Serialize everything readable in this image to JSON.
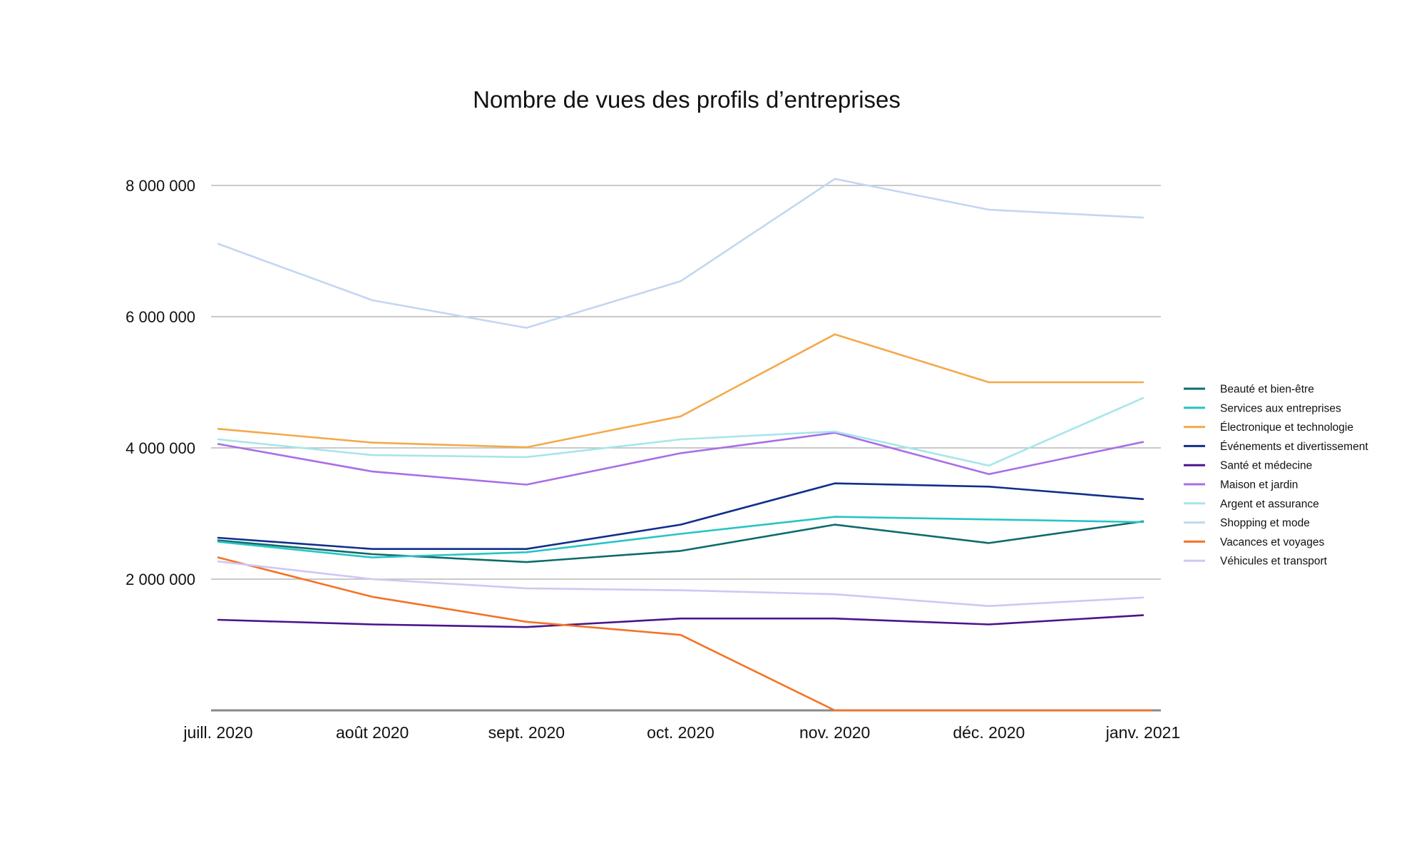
{
  "chart_data": {
    "type": "line",
    "title": "Nombre de vues des profils d’entreprises",
    "xlabel": "",
    "ylabel": "",
    "categories": [
      "juill. 2020",
      "août 2020",
      "sept. 2020",
      "oct. 2020",
      "nov. 2020",
      "déc. 2020",
      "janv. 2021"
    ],
    "yticks": [
      2000000,
      4000000,
      6000000,
      8000000
    ],
    "ytick_labels": [
      "2 000 000",
      "4 000 000",
      "6 000 000",
      "8 000 000"
    ],
    "ylim": [
      0,
      8000000
    ],
    "grid": true,
    "legend_position": "right",
    "series": [
      {
        "name": "Beauté et bien-être",
        "color": "#0f6b6b",
        "values": [
          2590000,
          2380000,
          2260000,
          2430000,
          2830000,
          2550000,
          2880000
        ]
      },
      {
        "name": "Services aux entreprises",
        "color": "#27c4c4",
        "values": [
          2570000,
          2330000,
          2410000,
          2690000,
          2950000,
          2910000,
          2870000
        ]
      },
      {
        "name": "Électronique et technologie",
        "color": "#f4a94a",
        "values": [
          4290000,
          4080000,
          4010000,
          4480000,
          5730000,
          5000000,
          5000000
        ]
      },
      {
        "name": "Événements et divertissement",
        "color": "#112e8c",
        "values": [
          2630000,
          2460000,
          2460000,
          2830000,
          3460000,
          3410000,
          3220000
        ]
      },
      {
        "name": "Santé et médecine",
        "color": "#4a148c",
        "values": [
          1380000,
          1310000,
          1270000,
          1400000,
          1400000,
          1310000,
          1450000
        ]
      },
      {
        "name": "Maison et jardin",
        "color": "#a86ee8",
        "values": [
          4060000,
          3640000,
          3440000,
          3920000,
          4230000,
          3600000,
          4090000
        ]
      },
      {
        "name": "Argent et assurance",
        "color": "#a6e6ea",
        "values": [
          4130000,
          3890000,
          3860000,
          4130000,
          4250000,
          3730000,
          4760000
        ]
      },
      {
        "name": "Shopping et mode",
        "color": "#c3d6f2",
        "values": [
          7110000,
          6250000,
          5830000,
          6540000,
          8100000,
          7630000,
          7510000
        ]
      },
      {
        "name": "Vacances et voyages",
        "color": "#f57224",
        "values": [
          2330000,
          1730000,
          1350000,
          1150000,
          0,
          0,
          0
        ]
      },
      {
        "name": "Véhicules et transport",
        "color": "#cfc7f4",
        "values": [
          2270000,
          2000000,
          1860000,
          1830000,
          1770000,
          1590000,
          1720000
        ]
      }
    ]
  }
}
